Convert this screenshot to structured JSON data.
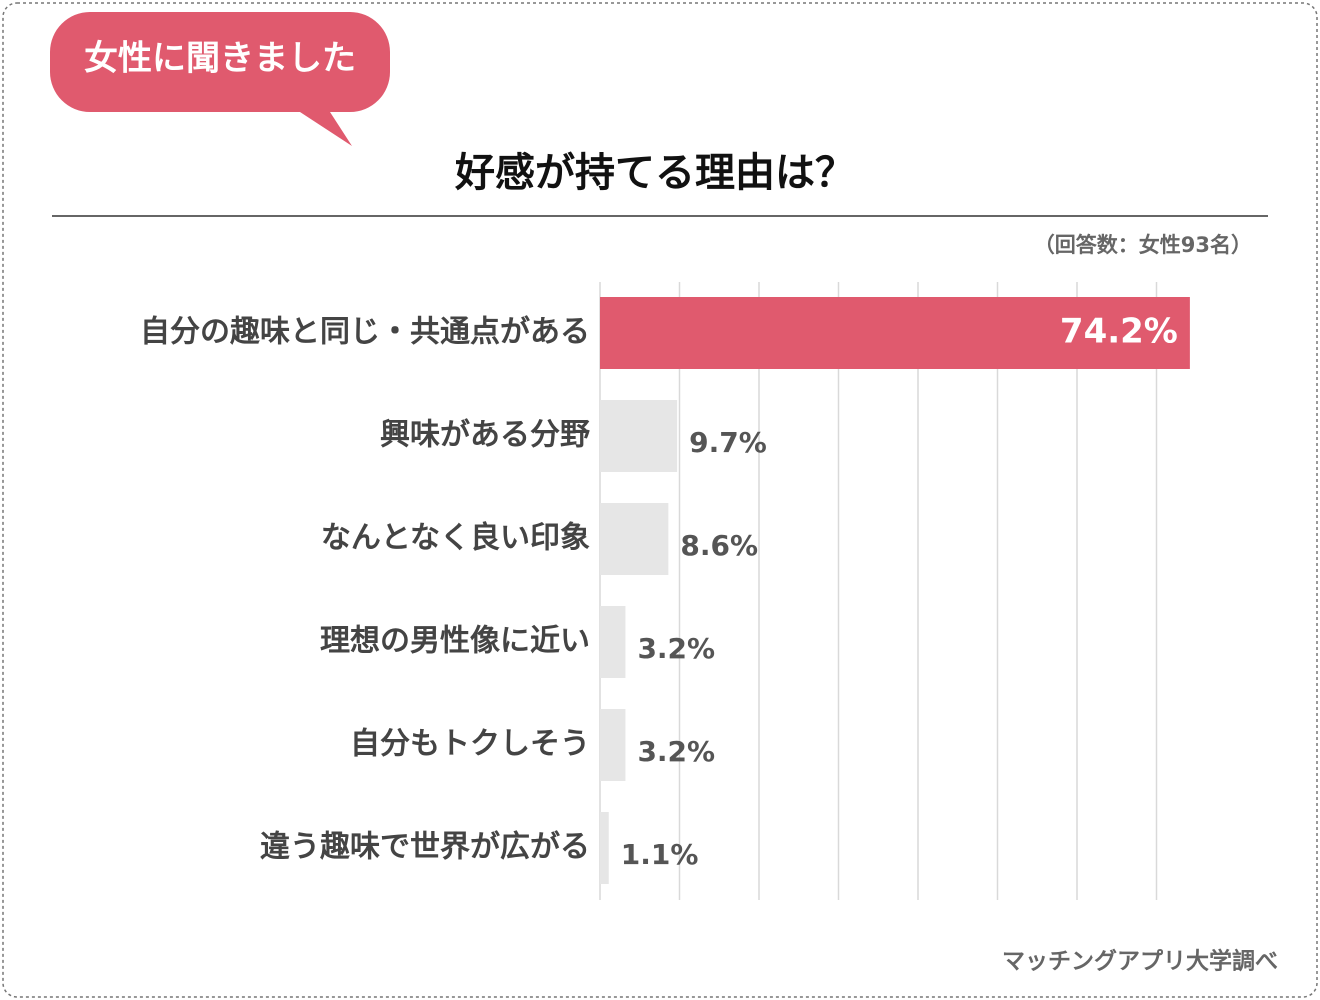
{
  "chart_data": {
    "type": "hbar",
    "badge": "女性に聞きました",
    "title": "好感が持てる理由は？",
    "note": "（回答数：女性93名）",
    "source": "マッチングアプリ大学調べ",
    "categories": [
      "自分の趣味と同じ・共通点がある",
      "興味がある分野",
      "なんとなく良い印象",
      "理想の男性像に近い",
      "自分もトクしそう",
      "違う趣味で世界が広がる"
    ],
    "values": [
      74.2,
      9.7,
      8.6,
      3.2,
      3.2,
      1.1
    ],
    "value_labels": [
      "74.2%",
      "9.7%",
      "8.6%",
      "3.2%",
      "3.2%",
      "1.1%"
    ],
    "colors": [
      "#e05a6e",
      "#e6e6e6",
      "#e6e6e6",
      "#e6e6e6",
      "#e6e6e6",
      "#e6e6e6"
    ],
    "xlim": [
      0,
      80
    ],
    "xticks": [
      0,
      10,
      20,
      30,
      40,
      50,
      60,
      70
    ],
    "grid": true
  }
}
